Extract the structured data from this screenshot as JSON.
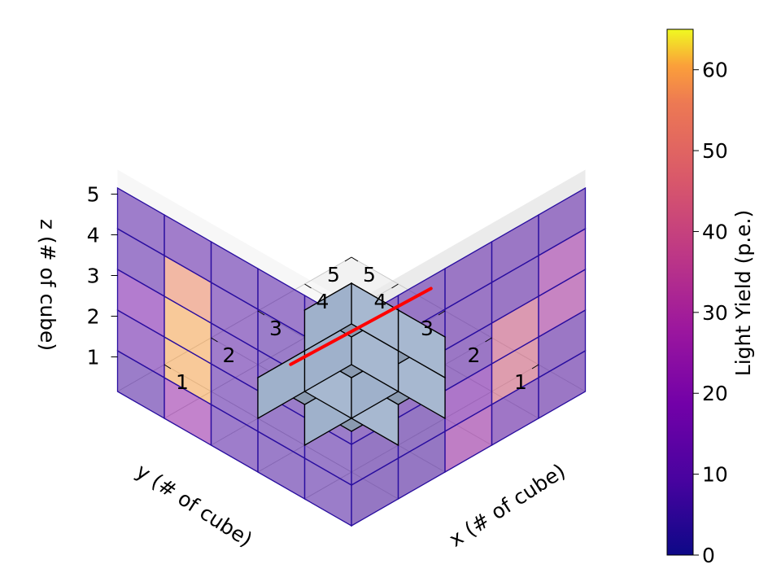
{
  "chart_data": {
    "type": "3d-voxel",
    "xlabel": "x (# of cube)",
    "ylabel": "y (# of cube)",
    "zlabel": "z (# of cube)",
    "x_ticks": [
      "1",
      "2",
      "3",
      "4",
      "5"
    ],
    "y_ticks": [
      "1",
      "2",
      "3",
      "4",
      "5"
    ],
    "z_ticks": [
      "1",
      "2",
      "3",
      "4",
      "5"
    ],
    "xlim": [
      0,
      5
    ],
    "ylim": [
      0,
      5
    ],
    "zlim": [
      0,
      5
    ],
    "grid": true,
    "colorbar": {
      "label": "Light Yield (p.e.)",
      "range": [
        0,
        65
      ],
      "ticks": [
        "0",
        "10",
        "20",
        "30",
        "40",
        "50",
        "60"
      ],
      "tick_values": [
        0,
        10,
        20,
        30,
        40,
        50,
        60
      ],
      "colormap": "plasma",
      "placement": "right"
    },
    "projection_yz_wall": {
      "description_axis_order": "rows z=1..5, cols y=5..1",
      "values": [
        [
          8,
          25,
          9,
          8,
          8
        ],
        [
          13,
          60,
          9,
          8,
          8
        ],
        [
          18,
          60,
          10,
          8,
          8
        ],
        [
          9,
          56,
          10,
          8,
          8
        ],
        [
          9,
          10,
          9,
          9,
          9
        ]
      ]
    },
    "projection_xz_wall": {
      "description_axis_order": "rows z=1..5, cols x=1..5",
      "values": [
        [
          8,
          8,
          26,
          12,
          10
        ],
        [
          8,
          8,
          18,
          44,
          10
        ],
        [
          9,
          9,
          10,
          42,
          30
        ],
        [
          9,
          9,
          10,
          10,
          27
        ],
        [
          9,
          9,
          10,
          10,
          10
        ]
      ]
    },
    "cubes": [
      {
        "x": 2,
        "y": 3,
        "z": 1
      },
      {
        "x": 3,
        "y": 3,
        "z": 1
      },
      {
        "x": 3,
        "y": 2,
        "z": 1
      },
      {
        "x": 3,
        "y": 3,
        "z": 2
      },
      {
        "x": 3,
        "y": 2,
        "z": 2
      },
      {
        "x": 2,
        "y": 2,
        "z": 1
      }
    ],
    "track": {
      "color": "#ff0000",
      "start": [
        1.9,
        3.2,
        0.6
      ],
      "end": [
        3.6,
        1.9,
        2.2
      ]
    },
    "cube_color": "#a7b8d0",
    "wall_edge_color": "#2a0fa0"
  }
}
